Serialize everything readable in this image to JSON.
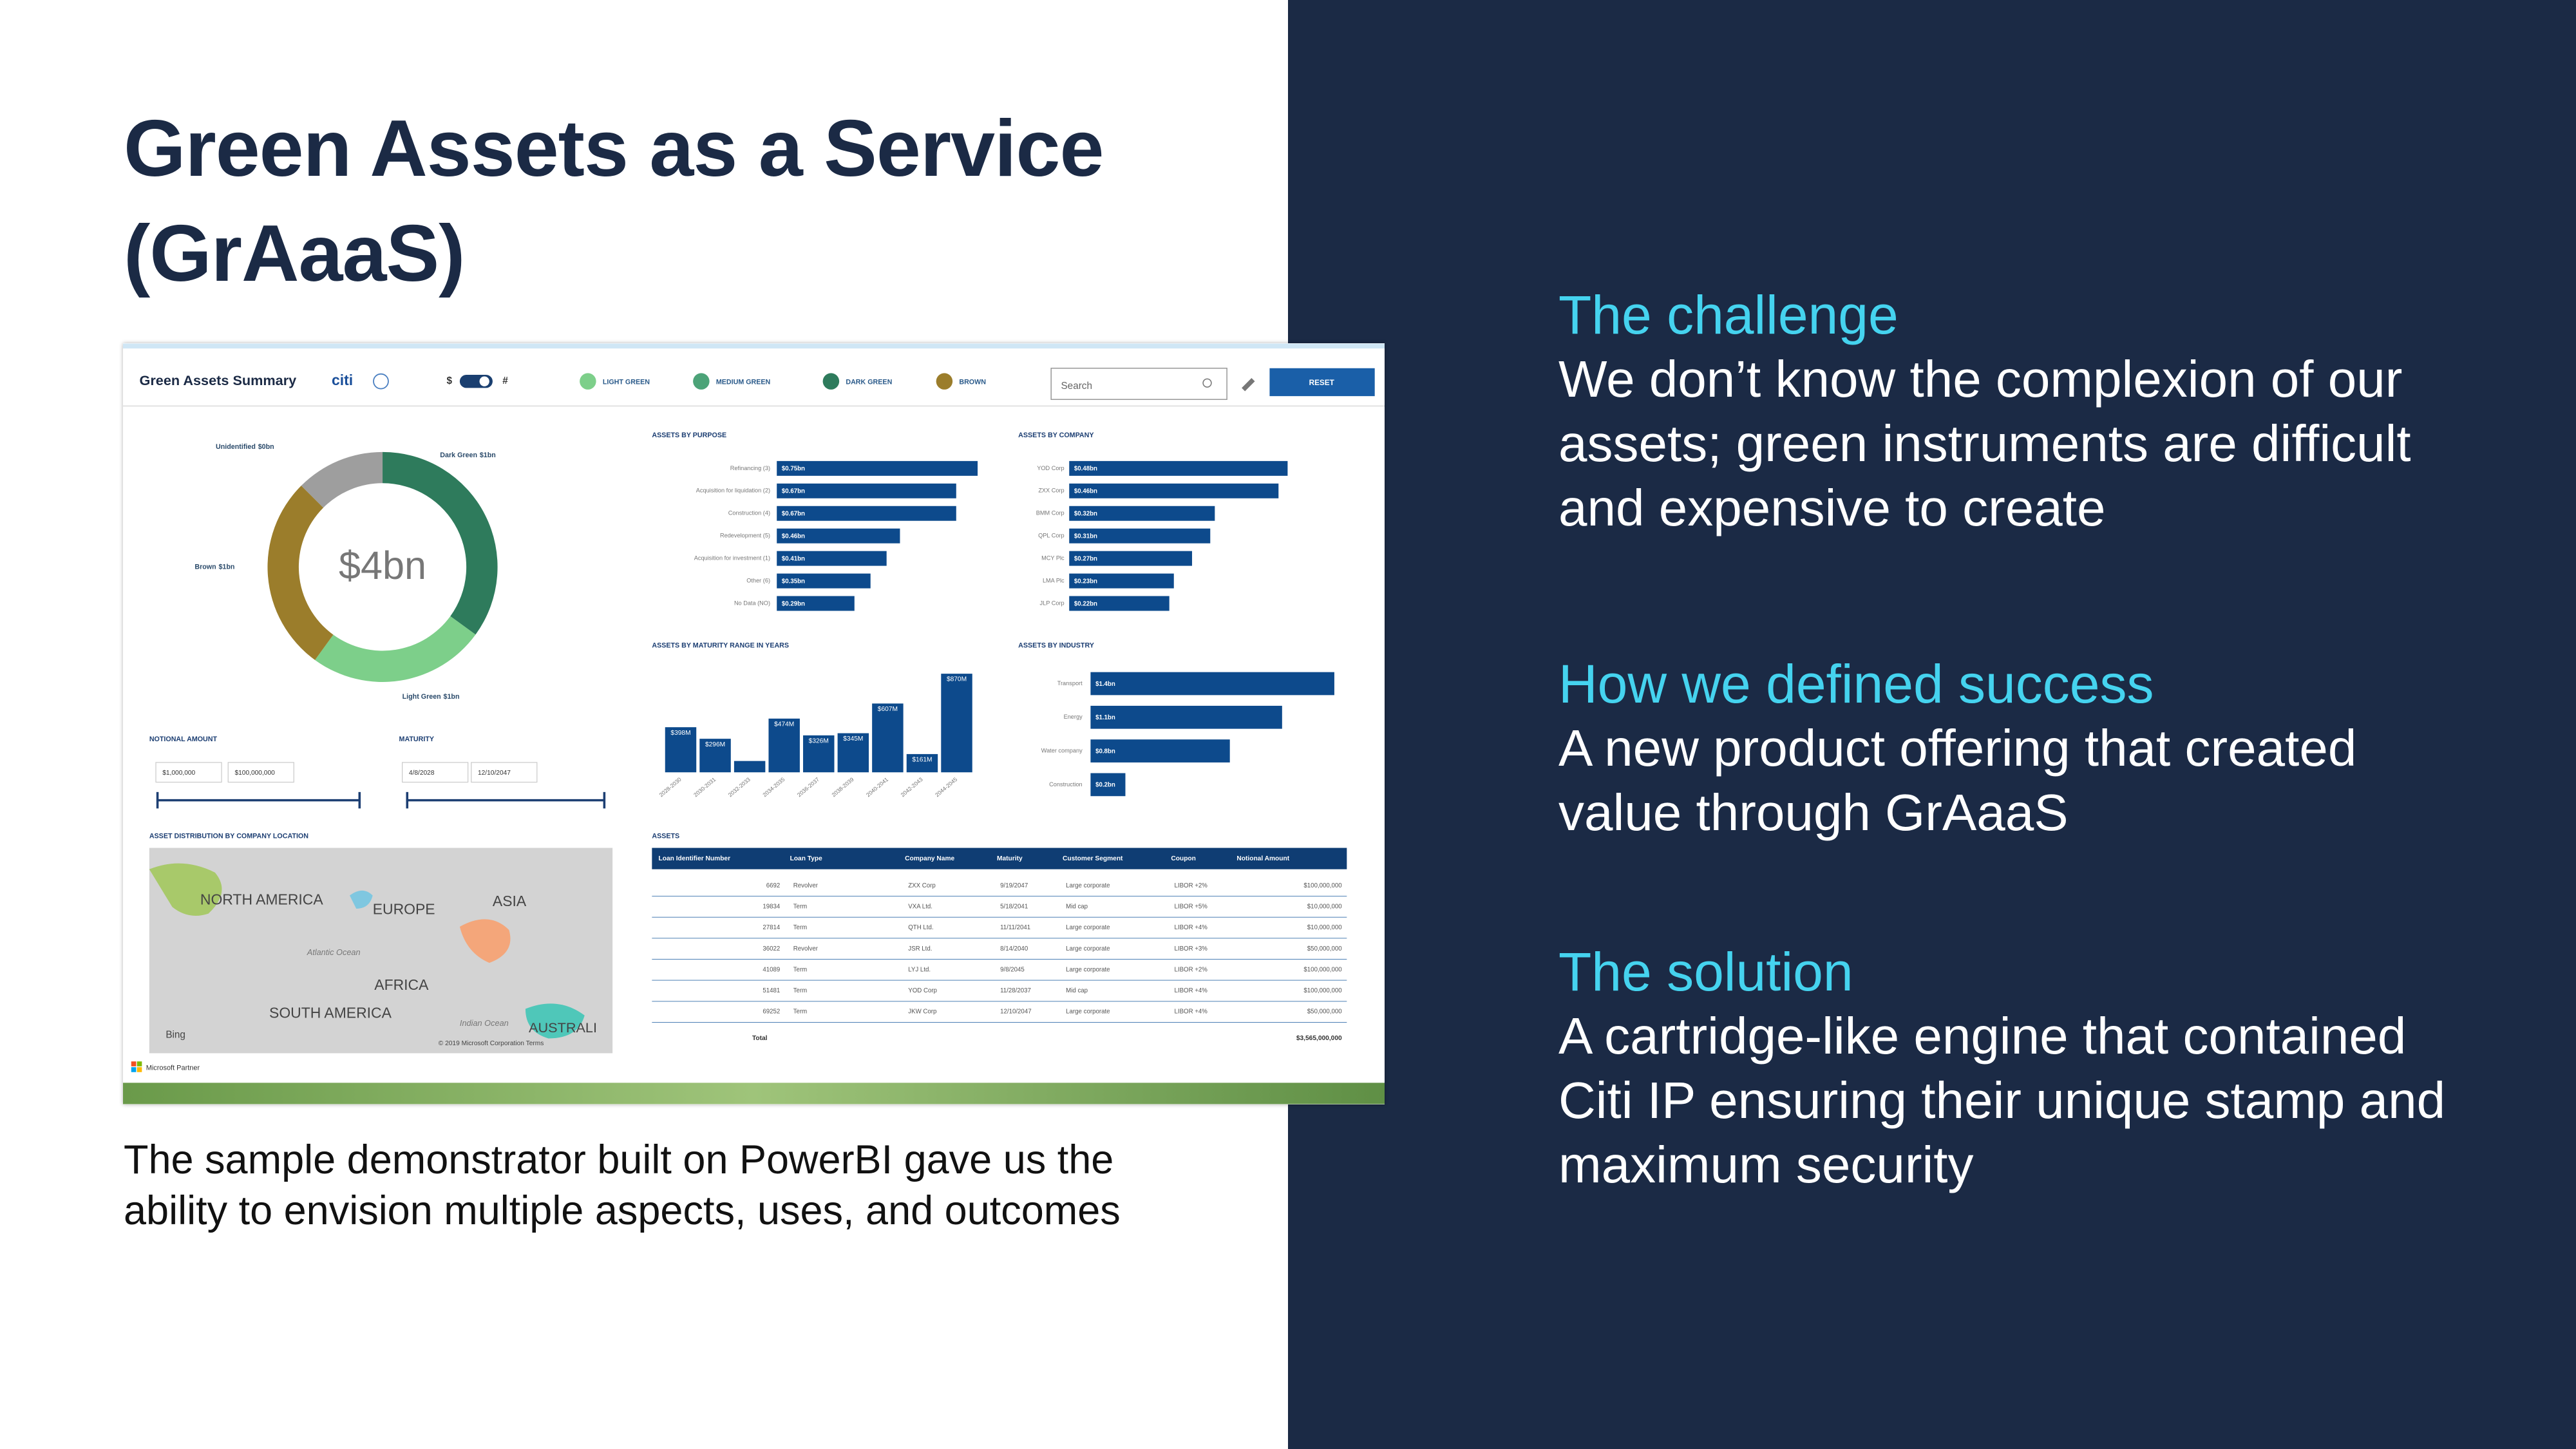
{
  "slide": {
    "title": "Green Assets as a Service (GrAaaS)",
    "caption": "The sample demonstrator built on PowerBI gave us the ability to envision multiple aspects, uses, and outcomes",
    "sections": [
      {
        "heading": "The challenge",
        "body": "We don’t know the complexion of our assets; green instruments are difficult and expensive to create"
      },
      {
        "heading": "How we defined success",
        "body": "A new product offering that created value through GrAaaS"
      },
      {
        "heading": "The solution",
        "body": "A cartridge-like engine that contained Citi IP ensuring their unique stamp and maximum security"
      }
    ]
  },
  "dashboard": {
    "title": "Green Assets Summary",
    "brand": "citi",
    "toggle_left": "$",
    "toggle_right": "#",
    "legend": [
      {
        "name": "LIGHT GREEN",
        "color": "#7dcf8a"
      },
      {
        "name": "MEDIUM GREEN",
        "color": "#4ca378"
      },
      {
        "name": "DARK GREEN",
        "color": "#2e7b5c"
      },
      {
        "name": "BROWN",
        "color": "#9b7d2b"
      }
    ],
    "search_placeholder": "Search",
    "reset": "RESET",
    "notional": {
      "label": "NOTIONAL AMOUNT",
      "from": "$1,000,000",
      "to": "$100,000,000"
    },
    "maturity": {
      "label": "MATURITY",
      "from": "4/8/2028",
      "to": "12/10/2047"
    },
    "map": {
      "title": "ASSET DISTRIBUTION BY COMPANY LOCATION",
      "labels": [
        "NORTH AMERICA",
        "EUROPE",
        "ASIA",
        "AFRICA",
        "SOUTH AMERICA",
        "AUSTRALI",
        "Atlantic Ocean",
        "Indian Ocean",
        "Bing",
        "© 2019 Microsoft Corporation Terms"
      ]
    },
    "assets_table": {
      "title": "ASSETS",
      "columns": [
        "Loan Identifier Number",
        "Loan Type",
        "Company Name",
        "Maturity",
        "Customer Segment",
        "Coupon",
        "Notional Amount"
      ],
      "rows": [
        [
          "6692",
          "Revolver",
          "ZXX Corp",
          "9/19/2047",
          "Large corporate",
          "LIBOR +2%",
          "$100,000,000"
        ],
        [
          "19834",
          "Term",
          "VXA Ltd.",
          "5/18/2041",
          "Mid cap",
          "LIBOR +5%",
          "$10,000,000"
        ],
        [
          "27814",
          "Term",
          "QTH Ltd.",
          "11/11/2041",
          "Large corporate",
          "LIBOR +4%",
          "$10,000,000"
        ],
        [
          "36022",
          "Revolver",
          "JSR Ltd.",
          "8/14/2040",
          "Large corporate",
          "LIBOR +3%",
          "$50,000,000"
        ],
        [
          "41089",
          "Term",
          "LYJ Ltd.",
          "9/8/2045",
          "Large corporate",
          "LIBOR +2%",
          "$100,000,000"
        ],
        [
          "51481",
          "Term",
          "YOD Corp",
          "11/28/2037",
          "Mid cap",
          "LIBOR +4%",
          "$100,000,000"
        ],
        [
          "69252",
          "Term",
          "JKW Corp",
          "12/10/2047",
          "Large corporate",
          "LIBOR +4%",
          "$50,000,000"
        ]
      ],
      "total_label": "Total",
      "total": "$3,565,000,000"
    },
    "footer": "Microsoft Partner"
  },
  "chart_data": [
    {
      "type": "pie",
      "center_label": "$4bn",
      "categories": [
        "Dark Green",
        "Light Green",
        "Brown",
        "Unidentified"
      ],
      "values": [
        1.4,
        1.0,
        1.1,
        0.5
      ],
      "value_labels": [
        "$1bn",
        "$1bn",
        "$1bn",
        "$0bn"
      ],
      "colors": [
        "#2e7b5c",
        "#7dcf8a",
        "#9b7d2b",
        "#9e9e9e"
      ]
    },
    {
      "type": "hbar",
      "title": "ASSETS BY PURPOSE",
      "categories": [
        "Refinancing (3)",
        "Acquisition for liquidation (2)",
        "Construction (4)",
        "Redevelopment (5)",
        "Acquisition for investment (1)",
        "Other (6)",
        "No Data (NO)"
      ],
      "values": [
        0.75,
        0.67,
        0.67,
        0.46,
        0.41,
        0.35,
        0.29
      ],
      "value_labels": [
        "$0.75bn",
        "$0.67bn",
        "$0.67bn",
        "$0.46bn",
        "$0.41bn",
        "$0.35bn",
        "$0.29bn"
      ],
      "color": "#0d4a8c"
    },
    {
      "type": "hbar",
      "title": "ASSETS BY COMPANY",
      "categories": [
        "YOD Corp",
        "ZXX Corp",
        "BMM Corp",
        "QPL Corp",
        "MCY Plc",
        "LMA Plc",
        "JLP Corp"
      ],
      "values": [
        0.48,
        0.46,
        0.32,
        0.31,
        0.27,
        0.23,
        0.22
      ],
      "value_labels": [
        "$0.48bn",
        "$0.46bn",
        "$0.32bn",
        "$0.31bn",
        "$0.27bn",
        "$0.23bn",
        "$0.22bn"
      ],
      "color": "#0d4a8c"
    },
    {
      "type": "vbar",
      "title": "ASSETS BY MATURITY RANGE IN YEARS",
      "categories": [
        "2028-2030",
        "2030-2031",
        "2032-2033",
        "2034-2035",
        "2036-2037",
        "2038-2039",
        "2040-2041",
        "2042-2043",
        "2044-2045"
      ],
      "values": [
        398,
        296,
        100,
        474,
        326,
        345,
        607,
        161,
        870
      ],
      "value_labels": [
        "$398M",
        "$296M",
        null,
        "$474M",
        "$326M",
        "$345M",
        "$607M",
        "$161M",
        "$870M"
      ],
      "color": "#0d4a8c"
    },
    {
      "type": "hbar",
      "title": "ASSETS BY INDUSTRY",
      "categories": [
        "Transport",
        "Energy",
        "Water company",
        "Construction"
      ],
      "values": [
        1.4,
        1.1,
        0.8,
        0.2
      ],
      "value_labels": [
        "$1.4bn",
        "$1.1bn",
        "$0.8bn",
        "$0.2bn"
      ],
      "color": "#0d4a8c"
    }
  ]
}
